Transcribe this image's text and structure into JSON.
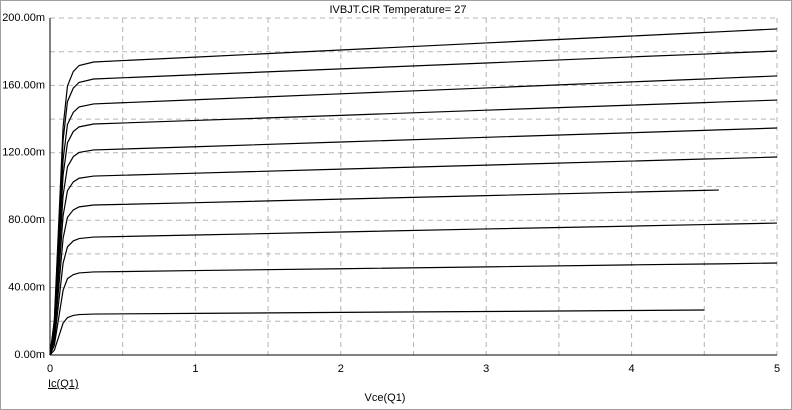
{
  "chart_data": {
    "type": "line",
    "title": "IVBJT.CIR Temperature= 27",
    "x_label": "Vce(Q1)",
    "y_label": "Ic(Q1)",
    "x": [
      0,
      0.03,
      0.06,
      0.09,
      0.12,
      0.16,
      0.2,
      0.3,
      1,
      2,
      3,
      4,
      4.5,
      4.6,
      5
    ],
    "series": [
      {
        "color": "#000000",
        "values": [
          0,
          2.9,
          10.9,
          18.9,
          22.2,
          23.5,
          24.0,
          24.3,
          24.7,
          25.3,
          25.8,
          26.4,
          26.7,
          null,
          null
        ]
      },
      {
        "color": "#000000",
        "values": [
          0,
          5.9,
          22.1,
          38.4,
          45.3,
          47.7,
          48.7,
          49.3,
          50.1,
          51.2,
          52.3,
          53.5,
          54.0,
          54.1,
          54.6
        ]
      },
      {
        "color": "#000000",
        "values": [
          0,
          8.4,
          31.4,
          54.5,
          64.2,
          67.7,
          69.1,
          70.0,
          71.2,
          73.0,
          74.8,
          76.5,
          77.4,
          77.6,
          78.3
        ]
      },
      {
        "color": "#000000",
        "values": [
          0,
          10.7,
          40.0,
          69.3,
          81.7,
          86.1,
          87.9,
          89.0,
          90.4,
          92.5,
          94.6,
          96.7,
          97.7,
          97.9,
          null
        ]
      },
      {
        "color": "#000000",
        "values": [
          0,
          12.7,
          47.6,
          82.6,
          97.5,
          102.7,
          104.9,
          106.2,
          107.9,
          110.3,
          112.7,
          115.1,
          116.3,
          116.5,
          117.5
        ]
      },
      {
        "color": "#000000",
        "values": [
          0,
          14.6,
          54.6,
          94.7,
          111.7,
          117.7,
          120.2,
          121.7,
          123.6,
          126.4,
          129.2,
          131.9,
          133.3,
          133.6,
          134.7
        ]
      },
      {
        "color": "#000000",
        "values": [
          0,
          16.5,
          61.5,
          106.7,
          125.9,
          132.6,
          135.4,
          137.1,
          139.2,
          142.2,
          145.3,
          148.3,
          149.8,
          150.1,
          151.3
        ]
      },
      {
        "color": "#000000",
        "values": [
          0,
          17.9,
          66.9,
          115.9,
          136.8,
          144.0,
          147.2,
          149.0,
          151.5,
          155.0,
          158.5,
          162.1,
          163.8,
          164.2,
          165.6
        ]
      },
      {
        "color": "#000000",
        "values": [
          0,
          19.7,
          73.5,
          127.5,
          150.4,
          158.4,
          161.8,
          163.8,
          166.3,
          169.8,
          173.3,
          176.9,
          178.6,
          179.0,
          180.4
        ]
      },
      {
        "color": "#000000",
        "values": [
          0,
          20.9,
          78.0,
          135.3,
          159.6,
          168.2,
          171.8,
          173.9,
          176.8,
          181.0,
          185.2,
          189.3,
          191.4,
          191.8,
          193.5
        ]
      }
    ],
    "xlim": [
      0,
      5
    ],
    "xticks": [
      0,
      {
        "value": 0.5,
        "label": null
      },
      1,
      {
        "value": 1.5,
        "label": null
      },
      2,
      {
        "value": 2.5,
        "label": null
      },
      3,
      {
        "value": 3.5,
        "label": null
      },
      4,
      {
        "value": 4.5,
        "label": null
      },
      5
    ],
    "ylim": [
      0,
      200
    ],
    "yticks": [
      {
        "value": 0,
        "label": "0.00m"
      },
      {
        "value": 20,
        "label": null
      },
      {
        "value": 40,
        "label": "40.00m"
      },
      {
        "value": 60,
        "label": null
      },
      {
        "value": 80,
        "label": "80.00m"
      },
      {
        "value": 100,
        "label": null
      },
      {
        "value": 120,
        "label": "120.00m"
      },
      {
        "value": 140,
        "label": null
      },
      {
        "value": 160,
        "label": "160.00m"
      },
      {
        "value": 180,
        "label": null
      },
      {
        "value": 200,
        "label": "200.00m"
      }
    ],
    "grid": true
  }
}
